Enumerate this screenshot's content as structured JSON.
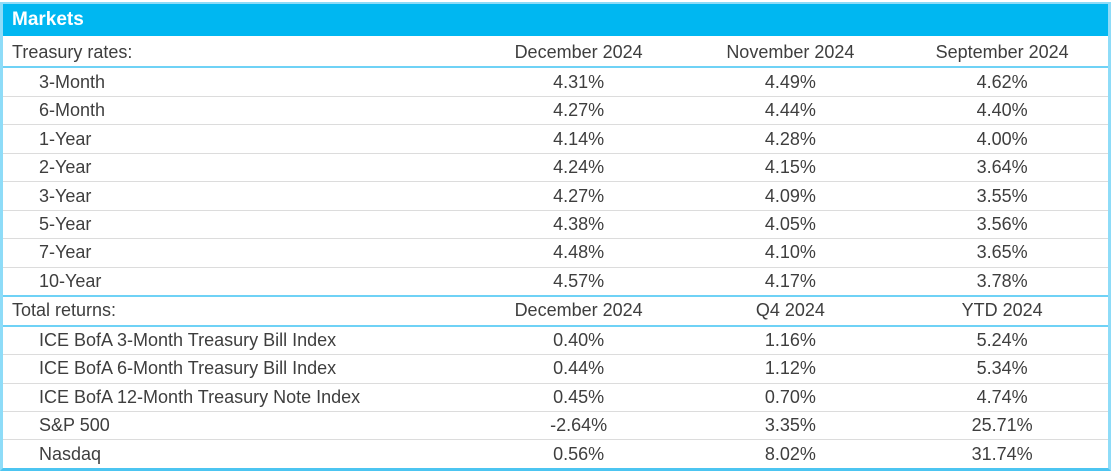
{
  "banner": {
    "title": "Markets"
  },
  "colors": {
    "banner_bg": "#00b7f1",
    "banner_text": "#ffffff",
    "section_divider": "#6fd2f6",
    "outer_border": "#8edcf8",
    "outer_border_bottom": "#4cc5f1",
    "row_separator": "#dcdcdc",
    "text": "#3e3e3e"
  },
  "sections": [
    {
      "label": "Treasury rates:",
      "columns": [
        "December 2024",
        "November 2024",
        "September 2024"
      ],
      "rows": [
        {
          "label": "3-Month",
          "values": [
            "4.31%",
            "4.49%",
            "4.62%"
          ]
        },
        {
          "label": "6-Month",
          "values": [
            "4.27%",
            "4.44%",
            "4.40%"
          ]
        },
        {
          "label": "1-Year",
          "values": [
            "4.14%",
            "4.28%",
            "4.00%"
          ]
        },
        {
          "label": "2-Year",
          "values": [
            "4.24%",
            "4.15%",
            "3.64%"
          ]
        },
        {
          "label": "3-Year",
          "values": [
            "4.27%",
            "4.09%",
            "3.55%"
          ]
        },
        {
          "label": "5-Year",
          "values": [
            "4.38%",
            "4.05%",
            "3.56%"
          ]
        },
        {
          "label": "7-Year",
          "values": [
            "4.48%",
            "4.10%",
            "3.65%"
          ]
        },
        {
          "label": "10-Year",
          "values": [
            "4.57%",
            "4.17%",
            "3.78%"
          ]
        }
      ]
    },
    {
      "label": "Total returns:",
      "columns": [
        "December 2024",
        "Q4 2024",
        "YTD 2024"
      ],
      "rows": [
        {
          "label": "ICE BofA 3-Month Treasury Bill Index",
          "values": [
            "0.40%",
            "1.16%",
            "5.24%"
          ]
        },
        {
          "label": "ICE BofA 6-Month Treasury Bill Index",
          "values": [
            "0.44%",
            "1.12%",
            "5.34%"
          ]
        },
        {
          "label": "ICE BofA 12-Month Treasury Note Index",
          "values": [
            "0.45%",
            "0.70%",
            "4.74%"
          ]
        },
        {
          "label": "S&P 500",
          "values": [
            "-2.64%",
            "3.35%",
            "25.71%"
          ]
        },
        {
          "label": "Nasdaq",
          "values": [
            "0.56%",
            "8.02%",
            "31.74%"
          ]
        }
      ]
    }
  ]
}
